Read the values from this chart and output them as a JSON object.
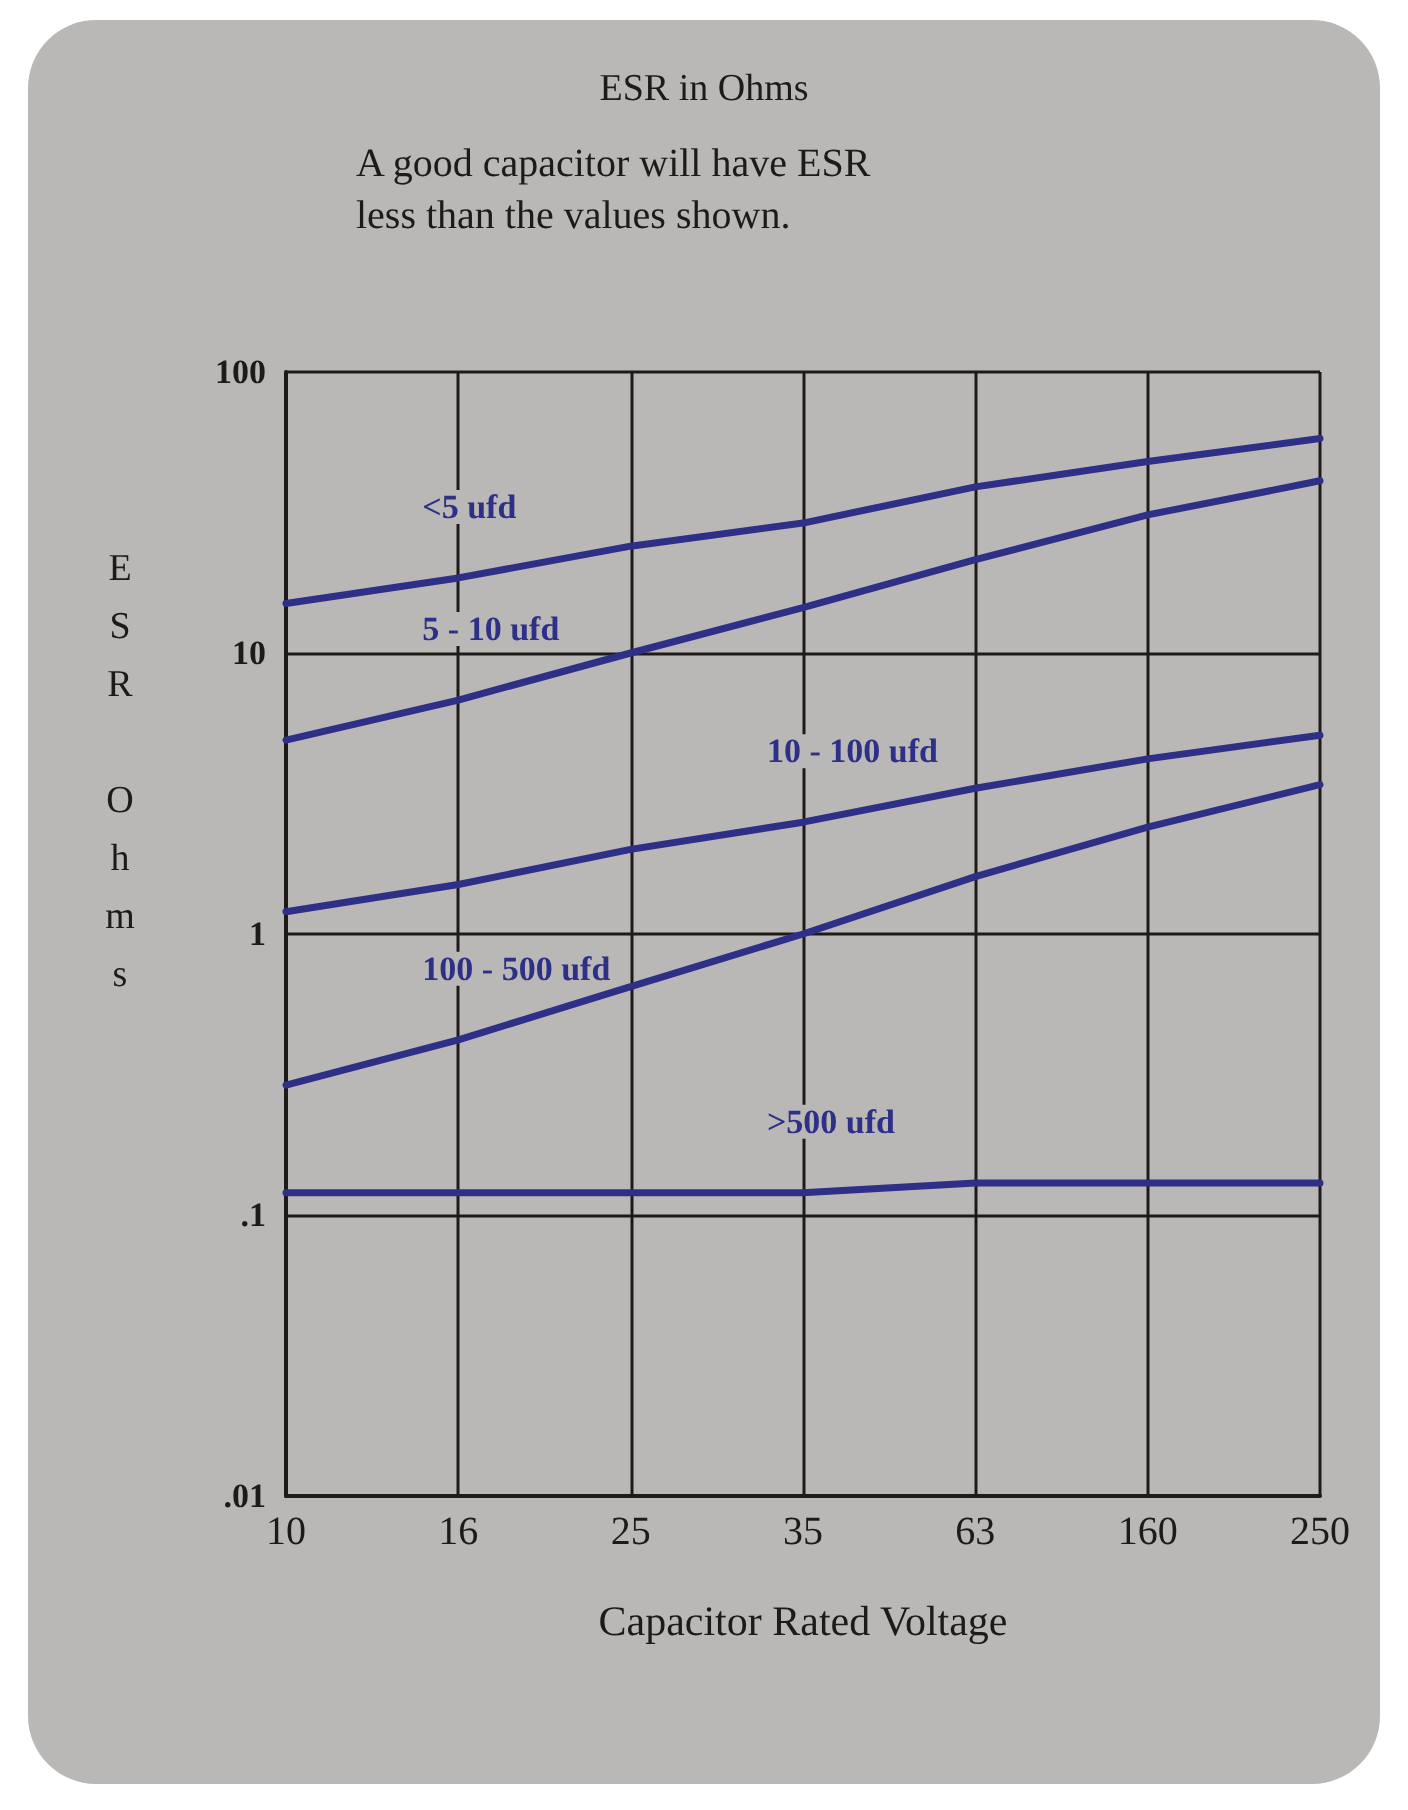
{
  "chart_data": {
    "type": "line",
    "title": "ESR in Ohms",
    "subtitle": "A good capacitor will have ESR\nless than the values shown.",
    "xlabel": "Capacitor Rated Voltage",
    "ylabel": "ESR Ohms",
    "categories": [
      "10",
      "16",
      "25",
      "35",
      "63",
      "160",
      "250"
    ],
    "series": [
      {
        "name": "<5 ufd",
        "color": "#2e2f86",
        "values": [
          15,
          18.5,
          24,
          29,
          39,
          48,
          58
        ]
      },
      {
        "name": "5 - 10 ufd",
        "color": "#2e2f86",
        "values": [
          4.9,
          6.8,
          10,
          14.5,
          21.5,
          31,
          41
        ]
      },
      {
        "name": "10 - 100 ufd",
        "color": "#2e2f86",
        "values": [
          1.2,
          1.5,
          2.0,
          2.5,
          3.3,
          4.2,
          5.1
        ]
      },
      {
        "name": "100 - 500 ufd",
        "color": "#2e2f86",
        "values": [
          0.29,
          0.42,
          0.65,
          1.0,
          1.6,
          2.4,
          3.4
        ]
      },
      {
        "name": ">500 ufd",
        "color": "#2e2f86",
        "values": [
          0.12,
          0.12,
          0.12,
          0.12,
          0.13,
          0.13,
          0.13
        ]
      }
    ],
    "log": true,
    "ylim": [
      0.01,
      100
    ],
    "yticks": [
      {
        "value": 0.01,
        "label": ".01"
      },
      {
        "value": 0.1,
        "label": ".1"
      },
      1,
      10,
      100
    ],
    "grid": true,
    "legend": false,
    "marker": "none",
    "line_style": "solid"
  }
}
